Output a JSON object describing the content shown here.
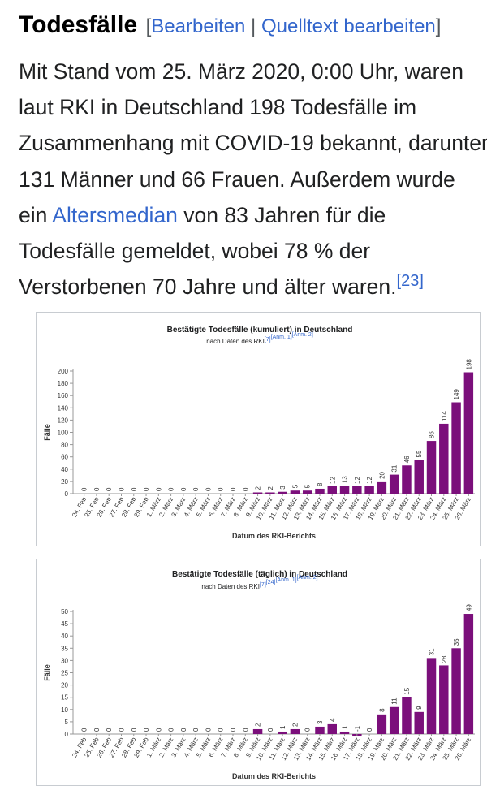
{
  "section": {
    "title": "Todesfälle",
    "bracket_open": "[",
    "edit_label": "Bearbeiten",
    "separator": "|",
    "edit_source_label": "Quelltext bearbeiten",
    "bracket_close": "]"
  },
  "paragraph": {
    "l1": "Mit Stand vom 25. März 2020, 0:00 Uhr, waren",
    "l2": "laut RKI in Deutschland 198 Todesfälle im",
    "l3": "Zusammenhang mit COVID-19 bekannt, darunter",
    "l4": "131 Männer und 66 Frauen. Außerdem wurde",
    "l5_link": "Altersmedian",
    "l5_pre": "ein ",
    "l5_post": " von 83 Jahren für die",
    "l6": "Todesfälle gemeldet, wobei 78 % der",
    "l7": "Verstorbenen 70 Jahre und älter waren.",
    "ref": "[23]"
  },
  "colors": {
    "bar": "#7b0f7b",
    "link": "#3366cc",
    "axis": "#999999"
  },
  "chart_data": [
    {
      "type": "bar",
      "title": "Bestätigte Todesfälle (kumuliert) in Deutschland",
      "subtitle": "nach Daten des RKI",
      "subtitle_refs": [
        "[7]",
        "[Anm. 1]",
        "[Anm. 2]"
      ],
      "ylabel": "Fälle",
      "xlabel": "Datum des RKI-Berichts",
      "ylim": [
        0,
        200
      ],
      "yticks": [
        0,
        20,
        40,
        60,
        80,
        100,
        120,
        140,
        160,
        180,
        200
      ],
      "categories": [
        "24. Feb",
        "25. Feb",
        "26. Feb",
        "27. Feb",
        "28. Feb",
        "29. Feb",
        "1. März",
        "2. März",
        "3. März",
        "4. März",
        "5. März",
        "6. März",
        "7. März",
        "8. März",
        "9. März",
        "10. März",
        "11. März",
        "12. März",
        "13. März",
        "14. März",
        "15. März",
        "16. März",
        "17. März",
        "18. März",
        "19. März",
        "20. März",
        "21. März",
        "22. März",
        "23. März",
        "24. März",
        "25. März",
        "26. März"
      ],
      "values": [
        0,
        0,
        0,
        0,
        0,
        0,
        0,
        0,
        0,
        0,
        0,
        0,
        0,
        0,
        2,
        2,
        3,
        5,
        5,
        8,
        12,
        13,
        12,
        12,
        20,
        31,
        46,
        55,
        86,
        114,
        149,
        198
      ],
      "labels": [
        "0",
        "0",
        "0",
        "0",
        "0",
        "0",
        "0",
        "0",
        "0",
        "0",
        "0",
        "0",
        "0",
        "0",
        "2",
        "2",
        "3",
        "5",
        "5",
        "8",
        "12",
        "13",
        "12",
        "12",
        "20",
        "31",
        "46",
        "55",
        "86",
        "114",
        "149",
        "198"
      ],
      "grid": false
    },
    {
      "type": "bar",
      "title": "Bestätigte Todesfälle (täglich) in Deutschland",
      "subtitle": "nach Daten des RKI",
      "subtitle_refs": [
        "[7]",
        "[24]",
        "[Anm. 1]",
        "[Anm. 2]"
      ],
      "ylabel": "Fälle",
      "xlabel": "Datum des RKI-Berichts",
      "ylim": [
        0,
        50
      ],
      "yticks": [
        0,
        5,
        10,
        15,
        20,
        25,
        30,
        35,
        40,
        45,
        50
      ],
      "categories": [
        "24. Feb",
        "25. Feb",
        "26. Feb",
        "27. Feb",
        "28. Feb",
        "29. Feb",
        "1. März",
        "2. März",
        "3. März",
        "4. März",
        "5. März",
        "6. März",
        "7. März",
        "8. März",
        "9. März",
        "10. März",
        "11. März",
        "12. März",
        "13. März",
        "14. März",
        "15. März",
        "16. März",
        "17. März",
        "18. März",
        "19. März",
        "20. März",
        "21. März",
        "22. März",
        "23. März",
        "24. März",
        "25. März",
        "26. März"
      ],
      "values": [
        0,
        0,
        0,
        0,
        0,
        0,
        0,
        0,
        0,
        0,
        0,
        0,
        0,
        0,
        2,
        0,
        1,
        2,
        0,
        3,
        4,
        1,
        -1,
        0,
        8,
        11,
        15,
        9,
        31,
        28,
        35,
        49
      ],
      "labels": [
        "0",
        "0",
        "0",
        "0",
        "0",
        "0",
        "0",
        "0",
        "0",
        "0",
        "0",
        "0",
        "0",
        "0",
        "2",
        "0",
        "1",
        "2",
        "0",
        "3",
        "4",
        "1",
        "-1",
        "0",
        "8",
        "11",
        "15",
        "9",
        "31",
        "28",
        "35",
        "49"
      ],
      "grid": false
    }
  ]
}
